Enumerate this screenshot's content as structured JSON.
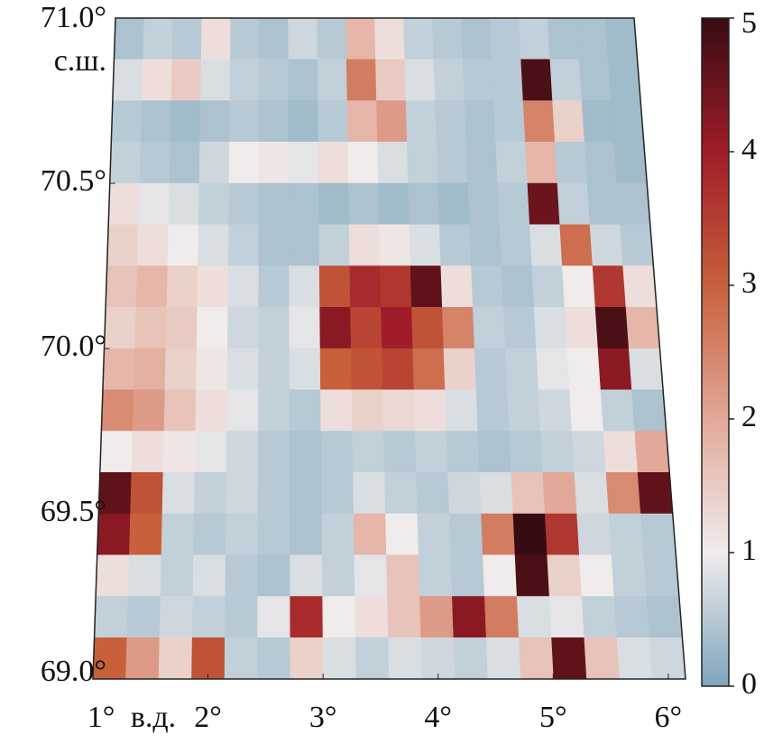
{
  "chart_data": {
    "type": "heatmap",
    "ylabel": "с.ш.",
    "xlabel": "в.д.",
    "xlim": [
      1,
      6.15
    ],
    "ylim": [
      69,
      71
    ],
    "xticks": [
      {
        "value": 1,
        "label": "1°"
      },
      {
        "value": 2,
        "label": "2°"
      },
      {
        "value": 3,
        "label": "3°"
      },
      {
        "value": 4,
        "label": "4°"
      },
      {
        "value": 5,
        "label": "5°"
      },
      {
        "value": 6,
        "label": "6°"
      }
    ],
    "yticks": [
      {
        "value": 71,
        "label": "71.0°"
      },
      {
        "value": 70.5,
        "label": "70.5°"
      },
      {
        "value": 70,
        "label": "70.0°"
      },
      {
        "value": 69.5,
        "label": "69.5°"
      },
      {
        "value": 69,
        "label": "69.0°"
      }
    ],
    "colorbar": {
      "lim": [
        0,
        5
      ],
      "ticks": [
        0,
        1,
        2,
        3,
        4,
        5
      ],
      "colors": [
        "#7ea6bc",
        "#f0ecec",
        "#e2a898",
        "#c8603c",
        "#a01c28",
        "#360c12"
      ]
    },
    "values": [
      [
        0.4,
        0.6,
        0.5,
        1.2,
        0.5,
        0.4,
        0.7,
        0.5,
        1.8,
        1.2,
        0.6,
        0.5,
        0.4,
        0.5,
        0.6,
        0.4,
        0.4,
        0.3
      ],
      [
        0.8,
        1.2,
        1.5,
        0.8,
        0.6,
        0.5,
        0.4,
        0.6,
        2.6,
        1.5,
        0.8,
        0.6,
        0.5,
        0.5,
        4.8,
        0.6,
        0.4,
        0.3
      ],
      [
        0.5,
        0.4,
        0.3,
        0.4,
        0.5,
        0.4,
        0.3,
        0.5,
        1.8,
        2.2,
        0.6,
        0.5,
        0.4,
        0.5,
        2.5,
        1.4,
        0.3,
        0.3
      ],
      [
        0.6,
        0.5,
        0.4,
        0.7,
        1.0,
        1.1,
        0.9,
        1.2,
        1.0,
        0.8,
        0.6,
        0.5,
        0.4,
        0.6,
        1.8,
        0.5,
        0.4,
        0.3
      ],
      [
        1.2,
        0.9,
        0.8,
        0.6,
        0.5,
        0.4,
        0.4,
        0.3,
        0.4,
        0.3,
        0.4,
        0.3,
        0.4,
        0.5,
        4.5,
        0.6,
        0.4,
        0.4
      ],
      [
        1.4,
        1.2,
        1.0,
        0.8,
        0.6,
        0.4,
        0.4,
        0.6,
        1.2,
        1.1,
        0.8,
        0.5,
        0.4,
        0.5,
        0.8,
        2.8,
        0.7,
        0.5
      ],
      [
        1.6,
        1.8,
        1.4,
        1.2,
        0.8,
        0.5,
        0.8,
        3.2,
        3.8,
        3.6,
        4.6,
        1.2,
        0.5,
        0.4,
        0.6,
        1.0,
        3.6,
        1.2
      ],
      [
        1.4,
        1.6,
        1.5,
        1.0,
        0.7,
        0.6,
        0.9,
        4.2,
        3.4,
        4.0,
        3.2,
        2.5,
        0.6,
        0.5,
        0.8,
        1.2,
        4.8,
        1.8
      ],
      [
        1.8,
        1.9,
        1.4,
        1.1,
        0.8,
        0.6,
        0.8,
        3.0,
        3.2,
        3.4,
        2.8,
        1.4,
        0.5,
        0.6,
        0.9,
        1.0,
        4.2,
        0.8
      ],
      [
        2.4,
        2.2,
        1.6,
        1.2,
        0.9,
        0.6,
        0.5,
        1.2,
        1.4,
        1.3,
        1.2,
        0.8,
        0.5,
        0.6,
        0.7,
        1.0,
        0.6,
        0.4
      ],
      [
        1.0,
        1.2,
        1.1,
        0.9,
        0.7,
        0.5,
        0.4,
        0.5,
        0.6,
        0.5,
        0.6,
        0.5,
        0.4,
        0.5,
        0.6,
        0.7,
        1.2,
        2.0
      ],
      [
        4.6,
        3.2,
        0.8,
        0.6,
        0.7,
        0.5,
        0.4,
        0.5,
        0.8,
        0.6,
        0.5,
        0.7,
        0.8,
        1.6,
        2.0,
        0.8,
        2.4,
        4.6
      ],
      [
        4.2,
        3.0,
        0.6,
        0.5,
        0.6,
        0.5,
        0.4,
        0.6,
        1.8,
        1.0,
        0.6,
        0.5,
        2.6,
        5.0,
        3.6,
        0.7,
        0.6,
        0.5
      ],
      [
        1.2,
        0.8,
        0.6,
        0.8,
        0.5,
        0.4,
        0.8,
        0.6,
        0.9,
        1.6,
        0.6,
        0.5,
        1.0,
        4.8,
        1.4,
        1.0,
        0.6,
        0.5
      ],
      [
        0.6,
        0.5,
        0.7,
        0.6,
        0.5,
        0.9,
        3.8,
        1.0,
        1.2,
        1.6,
        2.2,
        4.2,
        2.6,
        0.8,
        0.9,
        0.6,
        0.5,
        0.4
      ],
      [
        3.0,
        2.2,
        1.4,
        3.2,
        0.6,
        0.5,
        1.4,
        0.8,
        0.6,
        0.8,
        0.7,
        0.6,
        0.8,
        1.6,
        4.6,
        1.6,
        0.8,
        0.7
      ]
    ]
  }
}
